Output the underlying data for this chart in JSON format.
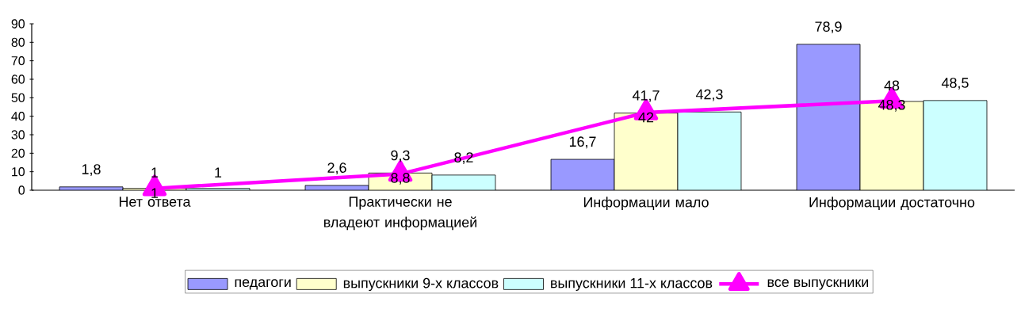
{
  "chart_data": {
    "type": "bar",
    "categories": [
      "Нет ответа",
      "Практически не владеют информацией",
      "Информации мало",
      "Информации достаточно"
    ],
    "ylim": [
      0,
      90
    ],
    "yticks": [
      0,
      10,
      20,
      30,
      40,
      50,
      60,
      70,
      80,
      90
    ],
    "legend": "bottom",
    "grid": false,
    "series": [
      {
        "name": "педагоги",
        "color": "#9999ff",
        "values": [
          1.8,
          2.6,
          16.7,
          78.9
        ],
        "value_labels": [
          "1,8",
          "2,6",
          "16,7",
          "78,9"
        ]
      },
      {
        "name": "выпускники 9-х классов",
        "color": "#ffffcc",
        "values": [
          1,
          9.3,
          41.7,
          48
        ],
        "value_labels": [
          "1",
          "9,3",
          "41,7",
          "48"
        ]
      },
      {
        "name": "выпускники 11-х классов",
        "color": "#ccffff",
        "values": [
          1,
          8.2,
          42.3,
          48.5
        ],
        "value_labels": [
          "1",
          "8,2",
          "42,3",
          "48,5"
        ]
      },
      {
        "name": "все выпускники",
        "type": "line",
        "color": "#ff00ff",
        "marker": "triangle",
        "values": [
          1,
          8.8,
          42,
          48.3
        ],
        "value_labels": [
          "1",
          "8,8",
          "42",
          "48,3"
        ]
      }
    ]
  }
}
